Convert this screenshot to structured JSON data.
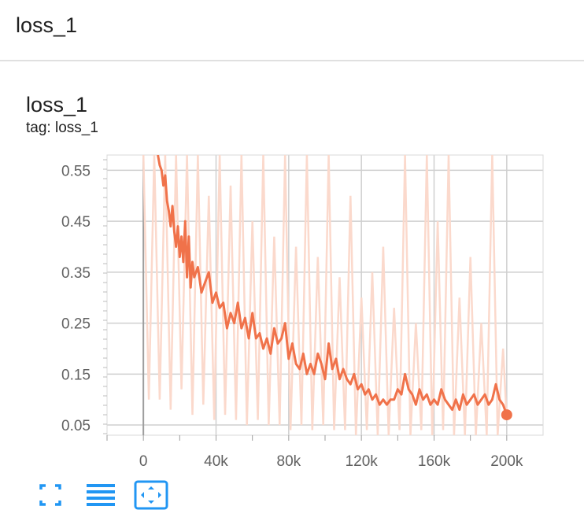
{
  "header": {
    "title": "loss_1"
  },
  "card": {
    "title": "loss_1",
    "tag": "tag: loss_1"
  },
  "toolbar": {
    "fullscreen_icon": "fullscreen-icon",
    "legend_icon": "menu-lines-icon",
    "fit_icon": "fit-domain-icon"
  },
  "colors": {
    "smoothed_line": "#f0724a",
    "raw_line": "#fbd9cc",
    "toolbar": "#2196f3",
    "grid": "#cfcfcf"
  },
  "chart_data": {
    "type": "line",
    "xlim": [
      -20000,
      220000
    ],
    "ylim": [
      0.03,
      0.58
    ],
    "x_ticks": [
      0,
      40000,
      80000,
      120000,
      160000,
      200000
    ],
    "x_tick_labels": [
      "0",
      "40k",
      "80k",
      "120k",
      "160k",
      "200k"
    ],
    "y_ticks": [
      0.05,
      0.15,
      0.25,
      0.35,
      0.45,
      0.55
    ],
    "y_tick_labels": [
      "0.05",
      "0.15",
      "0.25",
      "0.35",
      "0.45",
      "0.55"
    ],
    "grid": true,
    "series": [
      {
        "role": "raw",
        "x": [
          0,
          3000,
          6000,
          9000,
          12000,
          15000,
          18000,
          21000,
          24000,
          27000,
          30000,
          33000,
          36000,
          39000,
          42000,
          45000,
          48000,
          51000,
          54000,
          57000,
          60000,
          63000,
          66000,
          69000,
          72000,
          75000,
          78000,
          81000,
          84000,
          87000,
          90000,
          93000,
          96000,
          99000,
          102000,
          105000,
          108000,
          111000,
          114000,
          117000,
          120000,
          123000,
          126000,
          129000,
          132000,
          135000,
          138000,
          141000,
          144000,
          147000,
          150000,
          153000,
          156000,
          159000,
          162000,
          165000,
          168000,
          171000,
          174000,
          177000,
          180000,
          183000,
          186000,
          189000,
          192000,
          195000,
          198000,
          200000
        ],
        "y": [
          0.58,
          0.1,
          0.58,
          0.1,
          0.58,
          0.08,
          0.58,
          0.12,
          0.58,
          0.07,
          0.58,
          0.09,
          0.5,
          0.06,
          0.58,
          0.07,
          0.52,
          0.06,
          0.58,
          0.05,
          0.45,
          0.06,
          0.58,
          0.05,
          0.42,
          0.05,
          0.58,
          0.04,
          0.4,
          0.05,
          0.58,
          0.04,
          0.38,
          0.05,
          0.58,
          0.04,
          0.34,
          0.04,
          0.5,
          0.03,
          0.3,
          0.04,
          0.35,
          0.03,
          0.4,
          0.03,
          0.28,
          0.04,
          0.58,
          0.03,
          0.25,
          0.04,
          0.58,
          0.03,
          0.45,
          0.04,
          0.58,
          0.03,
          0.3,
          0.03,
          0.38,
          0.03,
          0.25,
          0.03,
          0.58,
          0.03,
          0.2,
          0.06
        ]
      },
      {
        "role": "smoothed",
        "x": [
          8000,
          9000,
          10000,
          11000,
          12000,
          13000,
          14000,
          15000,
          16000,
          17000,
          18000,
          19000,
          20000,
          21000,
          22000,
          23000,
          24000,
          25000,
          26000,
          27000,
          28000,
          30000,
          32000,
          34000,
          36000,
          38000,
          40000,
          42000,
          44000,
          46000,
          48000,
          50000,
          52000,
          54000,
          56000,
          58000,
          60000,
          62000,
          64000,
          66000,
          68000,
          70000,
          72000,
          74000,
          76000,
          78000,
          80000,
          82000,
          84000,
          86000,
          88000,
          90000,
          92000,
          94000,
          96000,
          98000,
          100000,
          102000,
          104000,
          106000,
          108000,
          110000,
          112000,
          114000,
          116000,
          118000,
          120000,
          122000,
          124000,
          126000,
          128000,
          130000,
          132000,
          134000,
          136000,
          138000,
          140000,
          142000,
          144000,
          146000,
          148000,
          150000,
          152000,
          154000,
          156000,
          158000,
          160000,
          162000,
          164000,
          166000,
          168000,
          170000,
          172000,
          174000,
          176000,
          178000,
          180000,
          182000,
          184000,
          186000,
          188000,
          190000,
          192000,
          194000,
          196000,
          198000,
          200000
        ],
        "y": [
          0.58,
          0.56,
          0.55,
          0.52,
          0.54,
          0.49,
          0.47,
          0.44,
          0.48,
          0.43,
          0.4,
          0.44,
          0.38,
          0.42,
          0.37,
          0.45,
          0.34,
          0.42,
          0.32,
          0.37,
          0.34,
          0.36,
          0.31,
          0.33,
          0.35,
          0.29,
          0.31,
          0.28,
          0.29,
          0.24,
          0.27,
          0.25,
          0.29,
          0.24,
          0.26,
          0.22,
          0.27,
          0.22,
          0.23,
          0.2,
          0.22,
          0.19,
          0.24,
          0.21,
          0.22,
          0.25,
          0.18,
          0.21,
          0.17,
          0.16,
          0.19,
          0.15,
          0.17,
          0.15,
          0.19,
          0.17,
          0.14,
          0.21,
          0.16,
          0.18,
          0.14,
          0.16,
          0.14,
          0.13,
          0.15,
          0.12,
          0.13,
          0.11,
          0.12,
          0.1,
          0.11,
          0.09,
          0.1,
          0.09,
          0.1,
          0.1,
          0.12,
          0.11,
          0.15,
          0.12,
          0.11,
          0.09,
          0.12,
          0.1,
          0.11,
          0.09,
          0.1,
          0.09,
          0.12,
          0.1,
          0.09,
          0.08,
          0.1,
          0.08,
          0.11,
          0.09,
          0.1,
          0.11,
          0.09,
          0.1,
          0.11,
          0.09,
          0.1,
          0.13,
          0.1,
          0.09,
          0.07
        ]
      }
    ]
  }
}
